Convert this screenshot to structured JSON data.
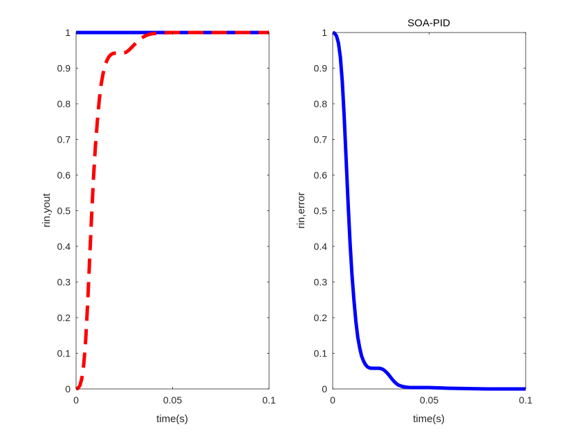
{
  "chart_data": [
    {
      "type": "line",
      "title": "",
      "xlabel": "time(s)",
      "ylabel": "rin,yout",
      "xlim": [
        0,
        0.1
      ],
      "ylim": [
        0,
        1
      ],
      "xticks": [
        0,
        0.05,
        0.1
      ],
      "xtick_labels": [
        "0",
        "0.05",
        "0.1"
      ],
      "yticks": [
        0,
        0.1,
        0.2,
        0.3,
        0.4,
        0.5,
        0.6,
        0.7,
        0.8,
        0.9,
        1
      ],
      "ytick_labels": [
        "0",
        "0.1",
        "0.2",
        "0.3",
        "0.4",
        "0.5",
        "0.6",
        "0.7",
        "0.8",
        "0.9",
        "1"
      ],
      "grid": false,
      "series": [
        {
          "color": "#0000ff",
          "style": "solid",
          "x": [
            0,
            0.1
          ],
          "y": [
            1,
            1
          ]
        },
        {
          "color": "#ff0000",
          "style": "dashed",
          "x": [
            0,
            0.001,
            0.002,
            0.003,
            0.004,
            0.005,
            0.006,
            0.007,
            0.008,
            0.009,
            0.01,
            0.011,
            0.012,
            0.013,
            0.014,
            0.015,
            0.016,
            0.017,
            0.018,
            0.019,
            0.02,
            0.021,
            0.022,
            0.023,
            0.024,
            0.025,
            0.026,
            0.027,
            0.028,
            0.03,
            0.032,
            0.034,
            0.036,
            0.038,
            0.04,
            0.042,
            0.045,
            0.05,
            0.06,
            0.07,
            0.08,
            0.09,
            0.1
          ],
          "y": [
            0,
            0.002,
            0.01,
            0.03,
            0.07,
            0.14,
            0.24,
            0.36,
            0.48,
            0.59,
            0.68,
            0.75,
            0.81,
            0.855,
            0.885,
            0.908,
            0.922,
            0.932,
            0.938,
            0.941,
            0.942,
            0.942,
            0.942,
            0.942,
            0.942,
            0.943,
            0.945,
            0.949,
            0.954,
            0.965,
            0.976,
            0.985,
            0.991,
            0.995,
            0.997,
            0.998,
            0.999,
            1,
            1,
            1,
            1,
            1,
            1
          ]
        }
      ]
    },
    {
      "type": "line",
      "title": "SOA-PID",
      "xlabel": "time(s)",
      "ylabel": "rin,error",
      "xlim": [
        0,
        0.1
      ],
      "ylim": [
        0,
        1
      ],
      "xticks": [
        0,
        0.05,
        0.1
      ],
      "xtick_labels": [
        "0",
        "0.05",
        "0.1"
      ],
      "yticks": [
        0,
        0.1,
        0.2,
        0.3,
        0.4,
        0.5,
        0.6,
        0.7,
        0.8,
        0.9,
        1
      ],
      "ytick_labels": [
        "0",
        "0.1",
        "0.2",
        "0.3",
        "0.4",
        "0.5",
        "0.6",
        "0.7",
        "0.8",
        "0.9",
        "1"
      ],
      "grid": false,
      "series": [
        {
          "color": "#0000ff",
          "style": "solid",
          "x": [
            0,
            0.001,
            0.002,
            0.003,
            0.004,
            0.005,
            0.006,
            0.007,
            0.008,
            0.009,
            0.01,
            0.011,
            0.012,
            0.013,
            0.014,
            0.015,
            0.016,
            0.017,
            0.018,
            0.019,
            0.02,
            0.021,
            0.022,
            0.023,
            0.024,
            0.025,
            0.026,
            0.027,
            0.028,
            0.029,
            0.03,
            0.031,
            0.032,
            0.033,
            0.034,
            0.036,
            0.038,
            0.04,
            0.042,
            0.045,
            0.05,
            0.055,
            0.06,
            0.07,
            0.08,
            0.09,
            0.1
          ],
          "y": [
            1,
            0.998,
            0.99,
            0.97,
            0.93,
            0.86,
            0.76,
            0.64,
            0.52,
            0.41,
            0.32,
            0.25,
            0.19,
            0.145,
            0.115,
            0.092,
            0.078,
            0.068,
            0.062,
            0.059,
            0.058,
            0.058,
            0.058,
            0.058,
            0.058,
            0.057,
            0.055,
            0.051,
            0.046,
            0.04,
            0.033,
            0.026,
            0.02,
            0.015,
            0.011,
            0.007,
            0.005,
            0.004,
            0.004,
            0.004,
            0.004,
            0.003,
            0.002,
            0.001,
            0,
            0,
            0
          ]
        }
      ]
    }
  ]
}
